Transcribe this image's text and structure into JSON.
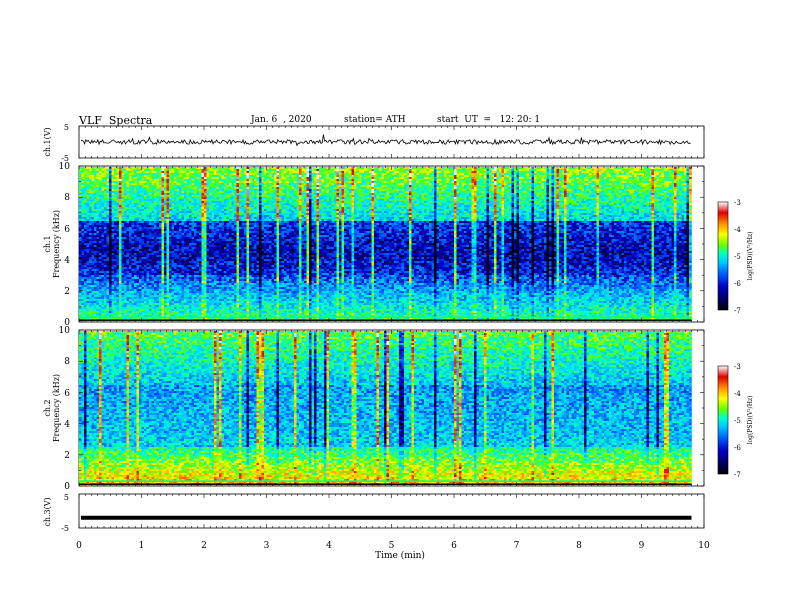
{
  "header": {
    "title": "VLF  Spectra",
    "date": "Jan. 6  , 2020",
    "station": "station= ATH",
    "start": "start  UT  =   12: 20: 1"
  },
  "chart_data": [
    {
      "type": "line",
      "panel": "ch1-waveform",
      "ylabel": "ch.1(V)",
      "ylim": [
        -5,
        5
      ],
      "yticks": [
        "5",
        "-5"
      ],
      "xlim": [
        0,
        10
      ],
      "trace_level": 0,
      "color": "#000000"
    },
    {
      "type": "heatmap",
      "panel": "ch1-spectrogram",
      "ylabel": "ch.1\nFrequency  (kHz)",
      "ylim": [
        0,
        10
      ],
      "yticks": [
        "0",
        "2",
        "4",
        "6",
        "8",
        "10"
      ],
      "xlim": [
        0,
        9.8
      ],
      "colorbar": {
        "label": "log(PSD)(V²/Hz)",
        "range": [
          -7,
          -3
        ],
        "ticks": [
          "-3",
          "-4",
          "-5",
          "-6",
          "-7"
        ],
        "colormap": [
          "#000000",
          "#000050",
          "#0000c8",
          "#0064ff",
          "#00c8ff",
          "#00ffc8",
          "#64ff00",
          "#ffff00",
          "#ff8c00",
          "#dc0000",
          "#ffffff"
        ]
      }
    },
    {
      "type": "heatmap",
      "panel": "ch2-spectrogram",
      "ylabel": "ch.2\nFrequency  (kHz)",
      "ylim": [
        0,
        10
      ],
      "yticks": [
        "0",
        "2",
        "4",
        "6",
        "8",
        "10"
      ],
      "xlim": [
        0,
        9.8
      ],
      "colorbar": {
        "label": "log(PSD)(V²/Hz)",
        "range": [
          -7,
          -3
        ],
        "ticks": [
          "-3",
          "-4",
          "-5",
          "-6",
          "-7"
        ]
      }
    },
    {
      "type": "line",
      "panel": "ch3-waveform",
      "ylabel": "ch.3(V)",
      "ylim": [
        -5,
        5
      ],
      "yticks": [
        "5",
        "-5"
      ],
      "xlim": [
        0,
        10
      ],
      "trace_level": -2,
      "color": "#000000"
    }
  ],
  "x_axis": {
    "label": "Time  (min)",
    "ticks": [
      "0",
      "1",
      "2",
      "3",
      "4",
      "5",
      "6",
      "7",
      "8",
      "9",
      "10"
    ],
    "range": [
      0,
      10
    ]
  }
}
